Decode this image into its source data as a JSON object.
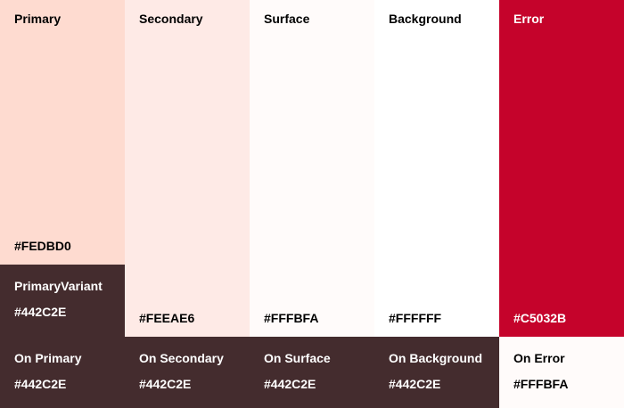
{
  "palette": {
    "theme_colors": {
      "primary": "#FEDBD0",
      "primary_variant": "#442C2E",
      "secondary": "#FEEAE6",
      "surface": "#FFFBFA",
      "background": "#FFFFFF",
      "error": "#C5032B",
      "on_primary": "#442C2E",
      "on_secondary": "#442C2E",
      "on_surface": "#442C2E",
      "on_background": "#442C2E",
      "on_error": "#FFFBFA"
    },
    "columns": [
      {
        "main": {
          "label": "Primary",
          "hex": "#FEDBD0"
        },
        "variant": {
          "label": "PrimaryVariant",
          "hex": "#442C2E"
        },
        "on": {
          "label": "On Primary",
          "hex": "#442C2E"
        }
      },
      {
        "main": {
          "label": "Secondary",
          "hex": "#FEEAE6"
        },
        "on": {
          "label": "On Secondary",
          "hex": "#442C2E"
        }
      },
      {
        "main": {
          "label": "Surface",
          "hex": "#FFFBFA"
        },
        "on": {
          "label": "On Surface",
          "hex": "#442C2E"
        }
      },
      {
        "main": {
          "label": "Background",
          "hex": "#FFFFFF"
        },
        "on": {
          "label": "On Background",
          "hex": "#442C2E"
        }
      },
      {
        "main": {
          "label": "Error",
          "hex": "#C5032B"
        },
        "on": {
          "label": "On Error",
          "hex": "#FFFBFA"
        }
      }
    ]
  }
}
